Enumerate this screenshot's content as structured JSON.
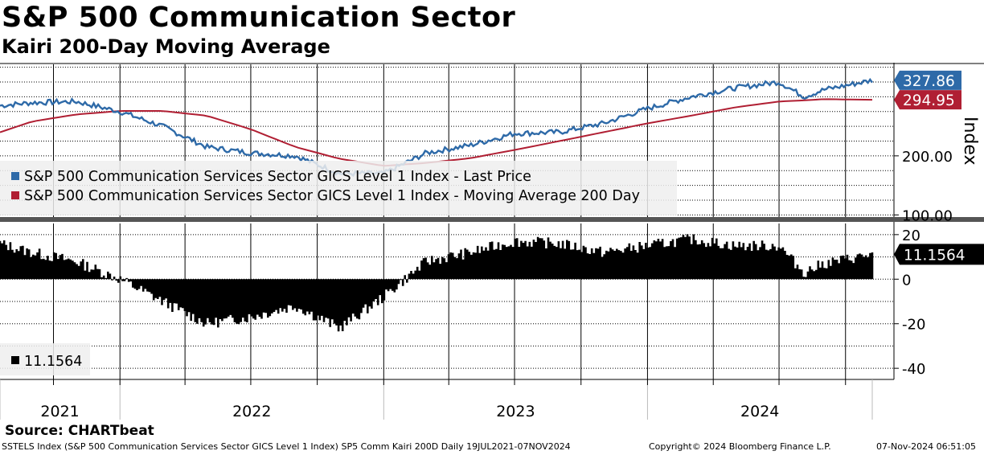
{
  "header": {
    "title": "S&P 500 Communication Sector",
    "subtitle": "Kairi 200-Day Moving Average"
  },
  "footer": {
    "source": "Source: CHARTbeat",
    "description": "SSTELS Index (S&P 500 Communication Services Sector GICS Level 1 Index) SP5 Comm Kairi 200D  Daily 19JUL2021-07NOV2024",
    "copyright": "Copyright© 2024 Bloomberg Finance L.P.",
    "timestamp": "07-Nov-2024 06:51:05"
  },
  "colors": {
    "price": "#2e6aa8",
    "ma": "#b01f33",
    "kairi": "#000000",
    "grid": "#000000",
    "legend_bg": "#eeeeee"
  },
  "chart_data": [
    {
      "type": "line",
      "title": "S&P 500 Communication Services Sector GICS Level 1 Index",
      "ylabel": "Index",
      "ylim": [
        95,
        355
      ],
      "y_ticks": [
        100,
        200
      ],
      "y_tick_labels": [
        "100.00",
        "200.00"
      ],
      "x": [
        "2021-07-19",
        "2021-09-01",
        "2021-11-01",
        "2022-01-01",
        "2022-03-01",
        "2022-05-01",
        "2022-07-01",
        "2022-09-01",
        "2022-11-01",
        "2023-01-01",
        "2023-03-01",
        "2023-05-01",
        "2023-07-01",
        "2023-09-01",
        "2023-11-01",
        "2024-01-01",
        "2024-03-01",
        "2024-05-01",
        "2024-07-01",
        "2024-08-05",
        "2024-09-01",
        "2024-11-07"
      ],
      "series": [
        {
          "name": "S&P 500 Communication Services Sector GICS Level 1 Index - Last Price",
          "values": [
            285,
            290,
            292,
            275,
            250,
            215,
            205,
            200,
            170,
            170,
            205,
            218,
            238,
            240,
            255,
            280,
            300,
            315,
            325,
            300,
            312,
            327.86
          ]
        },
        {
          "name": "S&P 500 Communication Services Sector GICS Level 1 Index - Moving Average 200 Day",
          "values": [
            240,
            258,
            270,
            276,
            276,
            268,
            245,
            215,
            195,
            183,
            188,
            196,
            210,
            225,
            240,
            255,
            268,
            282,
            292,
            294,
            296,
            294.95
          ]
        }
      ],
      "last_values": [
        {
          "label": "327.86",
          "series": 0
        },
        {
          "label": "294.95",
          "series": 1
        }
      ],
      "legend": [
        "S&P 500 Communication Services Sector GICS Level 1 Index - Last Price",
        "S&P 500 Communication Services Sector GICS Level 1 Index - Moving Average 200 Day"
      ],
      "legend_position": "bottom-left"
    },
    {
      "type": "area",
      "title": "SP5 Comm Kairi 200D",
      "ylim": [
        -45,
        25
      ],
      "y_ticks": [
        20,
        0,
        -20,
        -40
      ],
      "y_tick_labels": [
        "20",
        "0",
        "-20",
        "-40"
      ],
      "x": [
        "2021-07-19",
        "2021-09-01",
        "2021-11-01",
        "2022-01-01",
        "2022-03-01",
        "2022-05-01",
        "2022-07-01",
        "2022-09-01",
        "2022-11-01",
        "2023-01-01",
        "2023-03-01",
        "2023-05-01",
        "2023-07-01",
        "2023-09-01",
        "2023-11-01",
        "2024-01-01",
        "2024-03-01",
        "2024-05-01",
        "2024-07-01",
        "2024-08-05",
        "2024-09-01",
        "2024-11-07"
      ],
      "series": [
        {
          "name": "Kairi 200-Day",
          "values": [
            16,
            12,
            8,
            0,
            -10,
            -20,
            -17,
            -12,
            -22,
            -8,
            8,
            12,
            17,
            16,
            12,
            15,
            18,
            15,
            15,
            3,
            7,
            11.1564
          ]
        }
      ],
      "last_value_label": "11.1564",
      "legend": [
        "11.1564"
      ]
    }
  ],
  "x_axis": {
    "year_labels": [
      "2021",
      "2022",
      "2023",
      "2024"
    ]
  }
}
